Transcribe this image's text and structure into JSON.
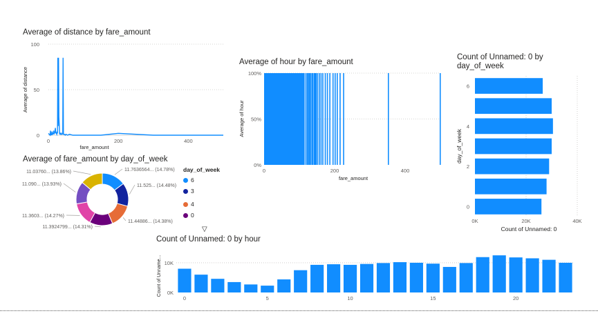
{
  "colors": {
    "primary": "#118DFF",
    "donut": [
      "#118DFF",
      "#12239E",
      "#E66C37",
      "#6B007B",
      "#E044A7",
      "#744EC2",
      "#D9B300"
    ]
  },
  "chart_data": [
    {
      "type": "line",
      "title": "Average of distance by fare_amount",
      "xlabel": "fare_amount",
      "ylabel": "Average of distance",
      "xlim": [
        0,
        500
      ],
      "ylim": [
        0,
        100
      ],
      "xticks": [
        "0",
        "200",
        "400"
      ],
      "yticks": [
        "0",
        "50",
        "100"
      ],
      "x": [
        0,
        5,
        6,
        7,
        8,
        9,
        10,
        12,
        14,
        15,
        16,
        17,
        18,
        20,
        21,
        22,
        23,
        24,
        25,
        26,
        27,
        28,
        29,
        30,
        31,
        32,
        33,
        34,
        35,
        36,
        37,
        38,
        39,
        40,
        41,
        42,
        43,
        44,
        45,
        46,
        48,
        50,
        55,
        60,
        70,
        80,
        100,
        150,
        200,
        300,
        400,
        500
      ],
      "y": [
        2,
        0,
        5,
        0,
        2,
        0,
        4,
        1,
        2,
        5,
        1,
        2,
        3,
        8,
        2,
        3,
        2,
        1,
        3,
        2,
        85,
        10,
        85,
        20,
        12,
        1,
        2,
        1,
        1,
        2,
        1,
        1,
        1,
        2,
        1,
        85,
        1,
        1,
        1,
        1,
        0,
        1,
        0,
        1,
        0,
        0,
        0,
        0,
        2,
        0,
        0,
        0
      ]
    },
    {
      "type": "bar",
      "title": "Average of hour by fare_amount",
      "xlabel": "fare_amount",
      "ylabel": "Average of hour",
      "xlim": [
        0,
        500
      ],
      "ylim": [
        0,
        1
      ],
      "xticks": [
        "0",
        "200",
        "400"
      ],
      "yticks": [
        "0%",
        "50%",
        "100%"
      ],
      "full_range": [
        0,
        115
      ],
      "x": [
        117,
        121,
        124,
        127,
        130,
        134,
        136,
        140,
        143,
        146,
        150,
        155,
        160,
        165,
        172,
        178,
        185,
        194,
        200,
        206,
        214,
        224,
        351,
        498
      ],
      "values": [
        1,
        1,
        1,
        1,
        1,
        1,
        1,
        1,
        1,
        1,
        1,
        1,
        1,
        1,
        1,
        1,
        1,
        1,
        1,
        1,
        1,
        1,
        1,
        1
      ]
    },
    {
      "type": "bar",
      "orientation": "horizontal",
      "title": "Count of Unnamed: 0 by day_of_week",
      "xlabel": "Count of Unnamed: 0",
      "ylabel": "day_of_week",
      "xlim": [
        0,
        40000
      ],
      "xticks": [
        "0K",
        "20K",
        "40K"
      ],
      "yticks": [
        "0",
        "2",
        "4",
        "6"
      ],
      "categories": [
        "0",
        "1",
        "2",
        "3",
        "4",
        "5",
        "6"
      ],
      "values": [
        26000,
        28000,
        29000,
        30000,
        30500,
        30000,
        26500
      ]
    },
    {
      "type": "pie",
      "title": "Average of fare_amount by day_of_week",
      "legend_title": "day_of_week",
      "legend": [
        "6",
        "3",
        "4",
        "0"
      ],
      "labels": [
        "11.7636564... (14.78%)",
        "11.525... (14.48%)",
        "11.44886... (14.38%)",
        "11.3924799... (14.31%)",
        "11.3603... (14.27%)",
        "11.090... (13.93%)",
        "11.03760... (13.86%)"
      ],
      "values": [
        14.78,
        14.48,
        14.38,
        14.31,
        14.27,
        13.93,
        13.86
      ]
    },
    {
      "type": "bar",
      "title": "Count of Unnamed: 0 by hour",
      "xlabel": "",
      "ylabel": "Count of Unname...",
      "ylim": [
        0,
        13000
      ],
      "xticks": [
        "0",
        "5",
        "10",
        "15",
        "20"
      ],
      "yticks": [
        "0K",
        "10K"
      ],
      "categories": [
        0,
        1,
        2,
        3,
        4,
        5,
        6,
        7,
        8,
        9,
        10,
        11,
        12,
        13,
        14,
        15,
        16,
        17,
        18,
        19,
        20,
        21,
        22,
        23
      ],
      "values": [
        8000,
        6000,
        4600,
        3500,
        2700,
        2300,
        4400,
        7500,
        9300,
        9500,
        9300,
        9600,
        9900,
        10200,
        10000,
        9700,
        8600,
        9900,
        11900,
        12500,
        11800,
        11500,
        11000,
        10000
      ]
    }
  ]
}
